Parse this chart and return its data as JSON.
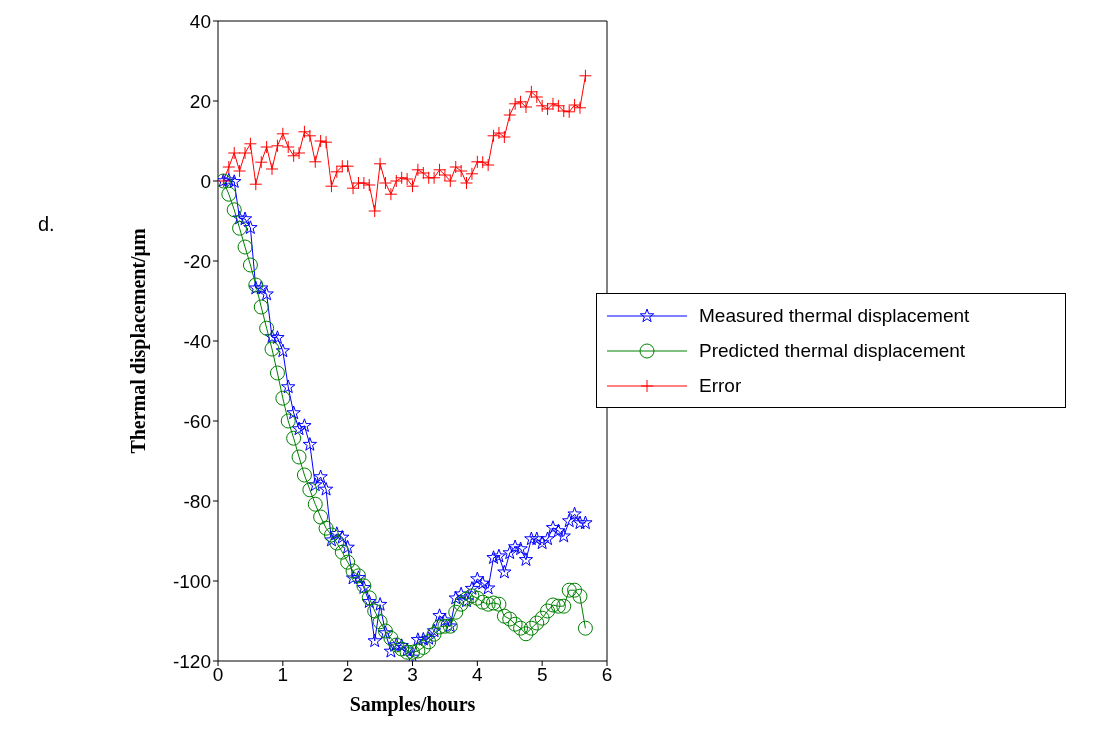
{
  "chart_data": {
    "type": "line",
    "xlabel": "Samples/hours",
    "ylabel": "Thermal displacement/μm",
    "annotations": [
      "d."
    ],
    "x": [
      0.083,
      0.167,
      0.25,
      0.333,
      0.417,
      0.5,
      0.583,
      0.667,
      0.75,
      0.833,
      0.917,
      1,
      1.083,
      1.167,
      1.25,
      1.333,
      1.417,
      1.5,
      1.583,
      1.667,
      1.75,
      1.833,
      1.917,
      2,
      2.083,
      2.167,
      2.25,
      2.333,
      2.417,
      2.5,
      2.583,
      2.667,
      2.75,
      2.833,
      2.917,
      3,
      3.083,
      3.167,
      3.25,
      3.333,
      3.417,
      3.5,
      3.583,
      3.667,
      3.75,
      3.833,
      3.917,
      4,
      4.083,
      4.167,
      4.25,
      4.333,
      4.417,
      4.5,
      4.583,
      4.667,
      4.75,
      4.833,
      4.917,
      5,
      5.083,
      5.167,
      5.25,
      5.333,
      5.417,
      5.5,
      5.583,
      5.667
    ],
    "series": [
      {
        "name": "Measured thermal displacement",
        "color": "#0000ff",
        "marker": "star",
        "values": [
          0,
          0.2,
          -0.2,
          -9.3,
          -9.5,
          -11.7,
          -26.8,
          -26.8,
          -28.3,
          -39,
          -39.2,
          -42.5,
          -51.5,
          -58,
          -62,
          -61.2,
          -65.9,
          -76,
          -74,
          -77.1,
          -89.8,
          -88.2,
          -89.1,
          -91.6,
          -99.3,
          -99.2,
          -101.7,
          -105.2,
          -115,
          -105.9,
          -113,
          -117.6,
          -116,
          -116.2,
          -117.3,
          -119.1,
          -114.7,
          -114.6,
          -114.4,
          -112.5,
          -108.7,
          -109.8,
          -111.3,
          -104.3,
          -103.3,
          -105,
          -101.9,
          -99.5,
          -100.6,
          -101.8,
          -94.2,
          -93.8,
          -97.8,
          -93,
          -91.5,
          -92,
          -94.7,
          -89.5,
          -89.5,
          -90.5,
          -89.5,
          -86.7,
          -87.5,
          -88.8,
          -85,
          -83.3,
          -85.5,
          -85.5
        ]
      },
      {
        "name": "Predicted thermal displacement",
        "color": "#008000",
        "marker": "circle",
        "values": [
          0,
          -3.3,
          -7.2,
          -11.8,
          -16.5,
          -21,
          -26,
          -31.5,
          -36.8,
          -42,
          -48,
          -54.3,
          -60,
          -64.3,
          -69,
          -73.5,
          -77.2,
          -80.8,
          -84,
          -86.8,
          -88.5,
          -90.5,
          -92.8,
          -95.3,
          -97.5,
          -98.7,
          -101.2,
          -104.2,
          -107.5,
          -110.2,
          -112.5,
          -114.3,
          -116,
          -117,
          -117.8,
          -117.8,
          -117.5,
          -116.6,
          -115.2,
          -113.3,
          -111.5,
          -111.3,
          -111.3,
          -107.8,
          -105.8,
          -104.5,
          -103.7,
          -104.3,
          -105.3,
          -105.8,
          -105.5,
          -105.8,
          -108.8,
          -109.5,
          -110.8,
          -111.8,
          -113.2,
          -111.8,
          -110.5,
          -109.3,
          -107.5,
          -106,
          -106.3,
          -106.3,
          -102.3,
          -102.3,
          -103.8,
          -111.8
        ]
      },
      {
        "name": "Error",
        "color": "#ff0000",
        "marker": "cross",
        "values": [
          0,
          3.5,
          7,
          2.5,
          7,
          9.3,
          -0.8,
          4.7,
          8.5,
          3,
          8.8,
          11.8,
          8.5,
          6.3,
          7,
          12.3,
          11.3,
          4.8,
          10,
          9.7,
          -1.3,
          2.3,
          3.7,
          3.7,
          -1.8,
          -0.5,
          -0.5,
          -1,
          -7.5,
          4.3,
          -0.5,
          -3.3,
          0,
          0.8,
          0.5,
          -1.3,
          2.8,
          2,
          0.8,
          0.8,
          2.8,
          1.5,
          0,
          3.5,
          2.5,
          -0.5,
          1.8,
          4.8,
          4.7,
          4,
          11.3,
          12,
          11,
          16.5,
          19.3,
          19.8,
          18.5,
          22.3,
          21,
          18.8,
          18,
          19.3,
          18.8,
          17.5,
          17.3,
          19,
          18.3,
          26.3
        ]
      }
    ],
    "xlim": [
      0,
      6
    ],
    "xticks": [
      0,
      1,
      2,
      3,
      4,
      5,
      6
    ],
    "ylim": [
      -120,
      40
    ],
    "yticks": [
      -120,
      -100,
      -80,
      -60,
      -40,
      -20,
      0,
      20,
      40
    ],
    "grid": false,
    "legend": "right",
    "line_style": "solid"
  }
}
